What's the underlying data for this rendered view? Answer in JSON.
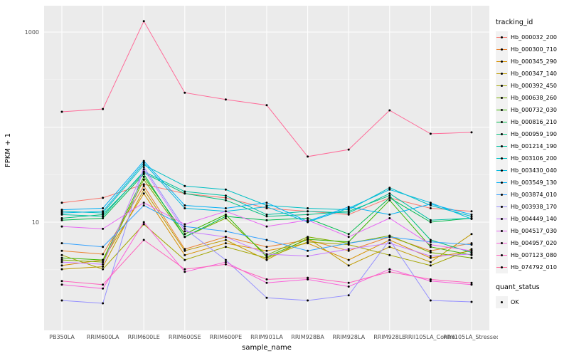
{
  "figure": {
    "background": "#FFFFFF",
    "panel_background": "#EBEBEB",
    "grid_major_color": "#FFFFFF",
    "grid_minor_color": "#F7F7F7",
    "tick_label_color": "#4D4D4D",
    "point_color": "#000000"
  },
  "chart_data": {
    "type": "line",
    "title": "",
    "xlabel": "sample_name",
    "ylabel": "FPKM + 1",
    "y_scale": "log10",
    "grid": true,
    "legend_position": "right",
    "ylim": [
      1,
      1800
    ],
    "y_ticks": [
      {
        "value": 10,
        "label": "10"
      },
      {
        "value": 1000,
        "label": "1000"
      }
    ],
    "y_grid_major": [
      10,
      100,
      1000
    ],
    "y_grid_minor": [
      3.16,
      31.6,
      316
    ],
    "categories": [
      "PB350LA",
      "RRIM600LA",
      "RRIM600LE",
      "RRIM600SE",
      "RRIM600PE",
      "RRIM901LA",
      "RRIM928BA",
      "RRIM928LA",
      "RRIM928LE",
      "RRII105LA_Control",
      "RRII105LA_Stressed"
    ],
    "series": [
      {
        "name": "Hb_000032_200",
        "color": "#F8766D",
        "values": [
          16,
          18,
          25,
          20,
          18,
          14,
          13,
          12,
          18,
          14,
          13
        ]
      },
      {
        "name": "Hb_000300_710",
        "color": "#EA8331",
        "values": [
          5.0,
          4.6,
          24,
          5.2,
          7.0,
          5.5,
          6.5,
          5.0,
          7.0,
          5.0,
          6.0
        ]
      },
      {
        "name": "Hb_000345_290",
        "color": "#D89000",
        "values": [
          3.5,
          4.0,
          20,
          4.5,
          6.0,
          5.0,
          6.0,
          4.0,
          6.5,
          4.2,
          5.0
        ]
      },
      {
        "name": "Hb_000347_140",
        "color": "#C09B00",
        "values": [
          3.2,
          3.4,
          22,
          5.0,
          6.5,
          4.0,
          6.8,
          3.5,
          5.5,
          3.8,
          7.5
        ]
      },
      {
        "name": "Hb_000392_450",
        "color": "#A3A500",
        "values": [
          4.5,
          3.2,
          9.5,
          4.0,
          5.5,
          4.2,
          6.2,
          5.8,
          4.5,
          3.5,
          5.2
        ]
      },
      {
        "name": "Hb_000638_260",
        "color": "#7CAE00",
        "values": [
          4.0,
          3.8,
          28,
          7.0,
          11,
          4.5,
          7.0,
          6.0,
          7.2,
          4.8,
          4.2
        ]
      },
      {
        "name": "Hb_000732_030",
        "color": "#39B600",
        "values": [
          4.2,
          4.0,
          30,
          7.5,
          12,
          4.3,
          6.6,
          6.2,
          17,
          5.5,
          4.5
        ]
      },
      {
        "name": "Hb_000816_210",
        "color": "#00BB4E",
        "values": [
          10.5,
          11,
          32,
          7.0,
          11.5,
          10.5,
          11,
          7.5,
          18,
          10,
          11
        ]
      },
      {
        "name": "Hb_000959_190",
        "color": "#00BF7D",
        "values": [
          11,
          12,
          33,
          20,
          17,
          11.5,
          12,
          13,
          19,
          6.5,
          4.8
        ]
      },
      {
        "name": "Hb_001214_190",
        "color": "#00C1A3",
        "values": [
          12,
          11.5,
          34,
          21,
          19,
          12,
          13,
          12.5,
          20,
          10.5,
          11
        ]
      },
      {
        "name": "Hb_003106_200",
        "color": "#00BFC4",
        "values": [
          13,
          12.5,
          40,
          24,
          22,
          15,
          14,
          13.5,
          23,
          15,
          11.5
        ]
      },
      {
        "name": "Hb_003430_040",
        "color": "#00BAE0",
        "values": [
          12.5,
          13,
          42,
          14,
          13,
          14.5,
          10,
          14,
          22,
          16,
          10.8
        ]
      },
      {
        "name": "Hb_003549_130",
        "color": "#00B0F6",
        "values": [
          13.5,
          14,
          44,
          15,
          14,
          16,
          10.2,
          14.5,
          12,
          15.5,
          12
        ]
      },
      {
        "name": "Hb_003874_010",
        "color": "#35A2FF",
        "values": [
          6.0,
          5.5,
          15,
          9.0,
          8.0,
          6.5,
          5.0,
          6.0,
          7.0,
          6.2,
          5.8
        ]
      },
      {
        "name": "Hb_003938_170",
        "color": "#9590FF",
        "values": [
          1.5,
          1.4,
          38,
          8.5,
          4.0,
          1.6,
          1.5,
          1.7,
          6.5,
          1.5,
          1.45
        ]
      },
      {
        "name": "Hb_004449_140",
        "color": "#C77CFF",
        "values": [
          3.8,
          3.6,
          36,
          8.0,
          7.0,
          4.6,
          4.4,
          5.2,
          6.0,
          4.4,
          4.6
        ]
      },
      {
        "name": "Hb_004517_030",
        "color": "#E76BF3",
        "values": [
          9.0,
          8.5,
          16,
          9.5,
          13,
          9.0,
          10.5,
          7.0,
          11,
          5.8,
          5.0
        ]
      },
      {
        "name": "Hb_004957_020",
        "color": "#FA62DB",
        "values": [
          2.2,
          2.0,
          10,
          3.0,
          3.8,
          2.3,
          2.5,
          2.1,
          3.2,
          2.4,
          2.2
        ]
      },
      {
        "name": "Hb_007123_080",
        "color": "#FF62BC",
        "values": [
          2.4,
          2.2,
          6.5,
          3.2,
          3.6,
          2.5,
          2.6,
          2.3,
          3.0,
          2.5,
          2.3
        ]
      },
      {
        "name": "Hb_074792_010",
        "color": "#FF6A98",
        "values": [
          145,
          155,
          1300,
          230,
          195,
          170,
          49,
          58,
          150,
          85,
          88
        ]
      }
    ]
  },
  "legend": {
    "tracking_title": "tracking_id",
    "quant_title": "quant_status",
    "quant_items": [
      {
        "label": "OK",
        "point_color": "#000000"
      }
    ]
  }
}
